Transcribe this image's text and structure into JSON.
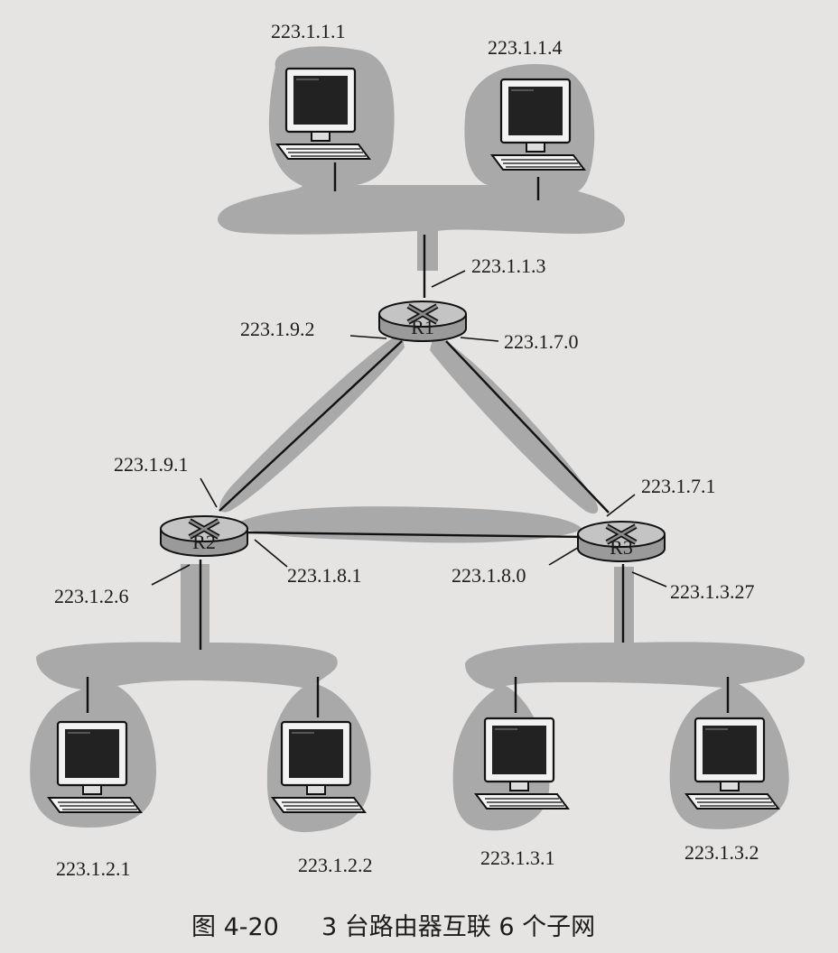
{
  "routers": {
    "r1": "R1",
    "r2": "R2",
    "r3": "R3"
  },
  "hosts": {
    "top_left": "223.1.1.1",
    "top_right": "223.1.1.4",
    "bl_left": "223.1.2.1",
    "bl_right": "223.1.2.2",
    "br_left": "223.1.3.1",
    "br_right": "223.1.3.2"
  },
  "interfaces": {
    "r1_top": "223.1.1.3",
    "r1_left": "223.1.9.2",
    "r1_right": "223.1.7.0",
    "r2_top": "223.1.9.1",
    "r2_right": "223.1.8.1",
    "r2_bottom": "223.1.2.6",
    "r3_top": "223.1.7.1",
    "r3_left": "223.1.8.0",
    "r3_bottom": "223.1.3.27"
  },
  "caption": {
    "figure_number": "图 4-20",
    "title": "3 台路由器互联 6 个子网"
  }
}
